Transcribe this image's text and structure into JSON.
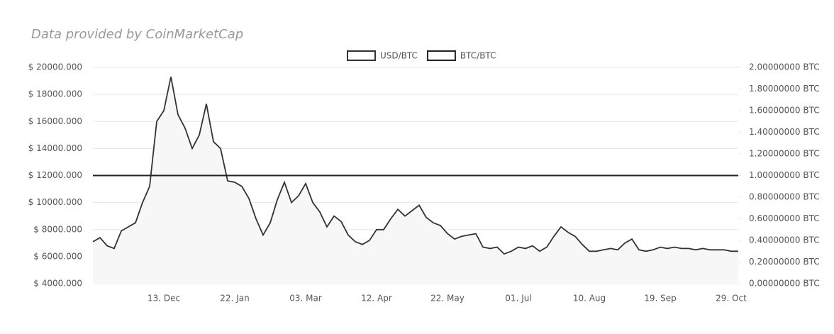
{
  "header": {
    "text": "Data provided by CoinMarketCap"
  },
  "chart_data": {
    "type": "line",
    "categories": [
      null,
      null,
      null,
      null,
      null,
      null,
      null,
      null,
      null,
      null,
      "13. Dec",
      null,
      null,
      null,
      null,
      null,
      null,
      null,
      null,
      null,
      "22. Jan",
      null,
      null,
      null,
      null,
      null,
      null,
      null,
      null,
      null,
      "03. Mar",
      null,
      null,
      null,
      null,
      null,
      null,
      null,
      null,
      null,
      "12. Apr",
      null,
      null,
      null,
      null,
      null,
      null,
      null,
      null,
      null,
      "22. May",
      null,
      null,
      null,
      null,
      null,
      null,
      null,
      null,
      null,
      "01. Jul",
      null,
      null,
      null,
      null,
      null,
      null,
      null,
      null,
      null,
      "10. Aug",
      null,
      null,
      null,
      null,
      null,
      null,
      null,
      null,
      null,
      "19. Sep",
      null,
      null,
      null,
      null,
      null,
      null,
      null,
      null,
      null,
      "29. Oct",
      null
    ],
    "series": [
      {
        "name": "USD/BTC",
        "color": "#333333",
        "area": "#f7f7f7",
        "values": [
          7100,
          7400,
          6800,
          6600,
          7900,
          8200,
          8500,
          10000,
          11200,
          16000,
          16800,
          19300,
          16500,
          15500,
          14000,
          15000,
          17300,
          14500,
          14000,
          11600,
          11500,
          11200,
          10300,
          8800,
          7600,
          8500,
          10200,
          11500,
          10000,
          10500,
          11400,
          10000,
          9300,
          8200,
          9000,
          8600,
          7600,
          7100,
          6900,
          7200,
          8000,
          8000,
          8800,
          9500,
          9000,
          9400,
          9800,
          8900,
          8500,
          8300,
          7700,
          7300,
          7500,
          7600,
          7700,
          6700,
          6600,
          6700,
          6200,
          6400,
          6700,
          6600,
          6800,
          6400,
          6700,
          7500,
          8200,
          7800,
          7500,
          6900,
          6400,
          6400,
          6500,
          6600,
          6500,
          7000,
          7300,
          6500,
          6400,
          6500,
          6700,
          6600,
          6700,
          6600,
          6600,
          6500,
          6600,
          6500,
          6500,
          6500,
          6400,
          6400
        ]
      },
      {
        "name": "BTC/BTC",
        "color": "#222222",
        "axis": "y2",
        "values": [
          1,
          1,
          1,
          1,
          1,
          1,
          1,
          1,
          1,
          1,
          1,
          1,
          1,
          1,
          1,
          1,
          1,
          1,
          1,
          1,
          1,
          1,
          1,
          1,
          1,
          1,
          1,
          1,
          1,
          1,
          1,
          1,
          1,
          1,
          1,
          1,
          1,
          1,
          1,
          1,
          1,
          1,
          1,
          1,
          1,
          1,
          1,
          1,
          1,
          1,
          1,
          1,
          1,
          1,
          1,
          1,
          1,
          1,
          1,
          1,
          1,
          1,
          1,
          1,
          1,
          1,
          1,
          1,
          1,
          1,
          1,
          1,
          1,
          1,
          1,
          1,
          1,
          1,
          1,
          1,
          1,
          1,
          1,
          1,
          1,
          1,
          1,
          1,
          1,
          1,
          1,
          1
        ]
      }
    ],
    "ylim": [
      4000,
      20000
    ],
    "yticks": [
      {
        "value": 4000,
        "label": "$ 4000.000"
      },
      {
        "value": 6000,
        "label": "$ 6000.000"
      },
      {
        "value": 8000,
        "label": "$ 8000.000"
      },
      {
        "value": 10000,
        "label": "$ 10000.000"
      },
      {
        "value": 12000,
        "label": "$ 12000.000"
      },
      {
        "value": 14000,
        "label": "$ 14000.000"
      },
      {
        "value": 16000,
        "label": "$ 16000.000"
      },
      {
        "value": 18000,
        "label": "$ 18000.000"
      },
      {
        "value": 20000,
        "label": "$ 20000.000"
      }
    ],
    "y2lim": [
      0,
      2
    ],
    "y2ticks": [
      {
        "value": 0,
        "label": "0.00000000 BTC"
      },
      {
        "value": 0.2,
        "label": "0.20000000 BTC"
      },
      {
        "value": 0.4,
        "label": "0.40000000 BTC"
      },
      {
        "value": 0.6,
        "label": "0.60000000 BTC"
      },
      {
        "value": 0.8,
        "label": "0.80000000 BTC"
      },
      {
        "value": 1,
        "label": "1.00000000 BTC"
      },
      {
        "value": 1.2,
        "label": "1.20000000 BTC"
      },
      {
        "value": 1.4,
        "label": "1.40000000 BTC"
      },
      {
        "value": 1.6,
        "label": "1.60000000 BTC"
      },
      {
        "value": 1.8,
        "label": "1.80000000 BTC"
      },
      {
        "value": 2,
        "label": "2.00000000 BTC"
      }
    ],
    "grid": true,
    "legend": "top"
  }
}
